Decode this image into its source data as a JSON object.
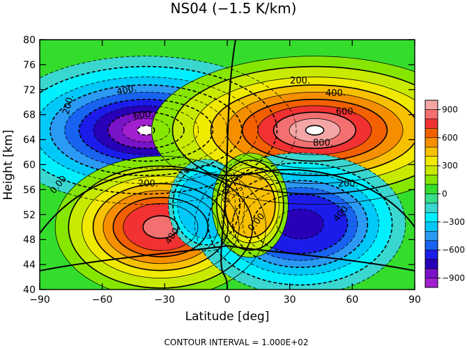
{
  "chart_data": {
    "type": "contour",
    "title": "NS04 (−1.5 K/km)",
    "xlabel": "Latitude [deg]",
    "ylabel": "Height [km]",
    "xlim": [
      -90,
      90
    ],
    "ylim": [
      40,
      80
    ],
    "xticks": [
      "−90",
      "−60",
      "−30",
      "0",
      "30",
      "60",
      "90"
    ],
    "yticks": [
      "40",
      "44",
      "48",
      "52",
      "56",
      "60",
      "64",
      "68",
      "72",
      "76",
      "80"
    ],
    "footer": "CONTOUR INTERVAL = 1.000E+02",
    "colorbar": {
      "labels": [
        "900",
        "600",
        "300",
        "0",
        "−300",
        "−600",
        "−900"
      ],
      "levels": [
        900,
        800,
        700,
        600,
        500,
        400,
        300,
        200,
        100,
        0,
        -100,
        -200,
        -300,
        -400,
        -500,
        -600,
        -700,
        -800,
        -900,
        -1000
      ],
      "colors": [
        "#f4a6a6",
        "#f47070",
        "#f23232",
        "#f26000",
        "#f58f00",
        "#f7c000",
        "#f0ea00",
        "#c8ea00",
        "#86e600",
        "#34dd2c",
        "#39dd8a",
        "#3ad7d0",
        "#00efff",
        "#00c8f8",
        "#2b9af5",
        "#1863f0",
        "#1b1cea",
        "#2800b8",
        "#7a12c8",
        "#a020d0"
      ]
    },
    "contour_labels": [
      "200.",
      "400.",
      "600.",
      "200.",
      "400.",
      "600.",
      "800.",
      "0.00",
      "200.",
      "400.",
      "0.00",
      "0.00",
      "200.",
      "400."
    ],
    "features": [
      {
        "sign": "negative",
        "lat": -39,
        "height": 65.5,
        "peak": -1000
      },
      {
        "sign": "positive",
        "lat": 42,
        "height": 65.5,
        "peak": 1000
      },
      {
        "sign": "positive",
        "lat": -32,
        "height": 50,
        "peak": 800
      },
      {
        "sign": "negative",
        "lat": 35,
        "height": 50.5,
        "peak": -700
      },
      {
        "sign": "negative",
        "lat": -10,
        "height": 53.5,
        "peak": -350
      },
      {
        "sign": "positive",
        "lat": 11,
        "height": 53.5,
        "peak": 450
      }
    ]
  }
}
